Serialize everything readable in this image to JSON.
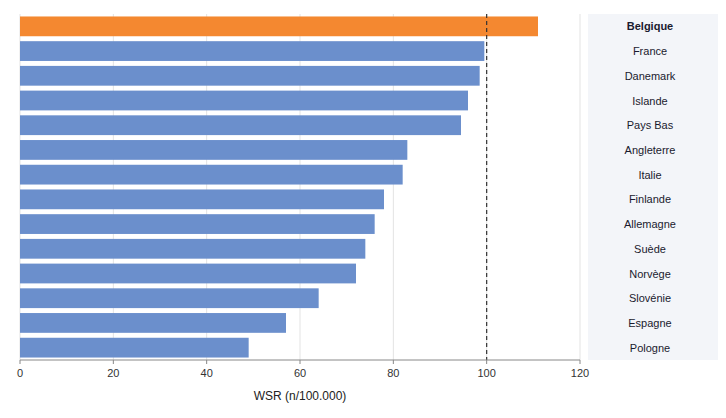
{
  "chart_data": {
    "type": "bar",
    "orientation": "horizontal",
    "x_label": "WSR (n/100.000)",
    "categories": [
      "Belgique",
      "France",
      "Danemark",
      "Islande",
      "Pays Bas",
      "Angleterre",
      "Italie",
      "Finlande",
      "Allemagne",
      "Suède",
      "Norvège",
      "Slovénie",
      "Espagne",
      "Pologne"
    ],
    "values": [
      111,
      99.5,
      98.5,
      96,
      94.5,
      83,
      82,
      78,
      76,
      74,
      72,
      64,
      57,
      49
    ],
    "colors": [
      "#f48830",
      "#6b8fcc",
      "#6b8fcc",
      "#6b8fcc",
      "#6b8fcc",
      "#6b8fcc",
      "#6b8fcc",
      "#6b8fcc",
      "#6b8fcc",
      "#6b8fcc",
      "#6b8fcc",
      "#6b8fcc",
      "#6b8fcc",
      "#6b8fcc"
    ],
    "xlim": [
      0,
      120
    ],
    "xticks": [
      0,
      20,
      40,
      60,
      80,
      100,
      120
    ],
    "reference_line": 100,
    "grid": true
  }
}
